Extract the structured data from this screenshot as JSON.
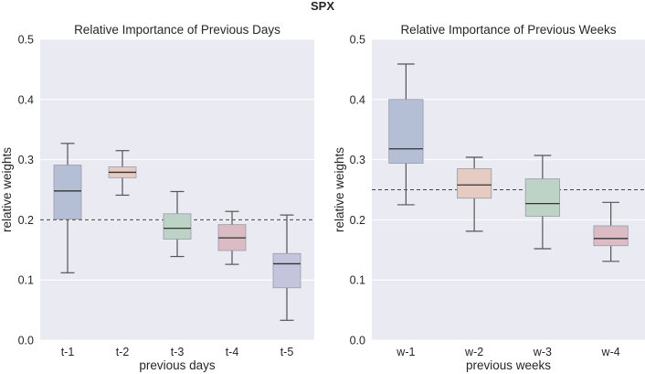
{
  "suptitle": "SPX",
  "chart_data": [
    {
      "type": "box",
      "title": "Relative Importance of Previous Days",
      "xlabel": "previous days",
      "ylabel": "relative weights",
      "ylim": [
        0.0,
        0.5
      ],
      "yticks": [
        "0.0",
        "0.1",
        "0.2",
        "0.3",
        "0.4",
        "0.5"
      ],
      "reference_line": 0.2,
      "grid": true,
      "categories": [
        "t-1",
        "t-2",
        "t-3",
        "t-4",
        "t-5"
      ],
      "boxes": [
        {
          "label": "t-1",
          "whisker_low": 0.112,
          "q1": 0.201,
          "median": 0.248,
          "q3": 0.291,
          "whisker_high": 0.327,
          "color": "#b4bfd6"
        },
        {
          "label": "t-2",
          "whisker_low": 0.241,
          "q1": 0.27,
          "median": 0.279,
          "q3": 0.288,
          "whisker_high": 0.315,
          "color": "#e6cbc3"
        },
        {
          "label": "t-3",
          "whisker_low": 0.139,
          "q1": 0.168,
          "median": 0.186,
          "q3": 0.21,
          "whisker_high": 0.247,
          "color": "#bcd3c6"
        },
        {
          "label": "t-4",
          "whisker_low": 0.126,
          "q1": 0.149,
          "median": 0.17,
          "q3": 0.192,
          "whisker_high": 0.214,
          "color": "#dbbcc4"
        },
        {
          "label": "t-5",
          "whisker_low": 0.033,
          "q1": 0.087,
          "median": 0.127,
          "q3": 0.144,
          "whisker_high": 0.208,
          "color": "#c5c4dd"
        }
      ]
    },
    {
      "type": "box",
      "title": "Relative Importance of Previous Weeks",
      "xlabel": "previous weeks",
      "ylabel": "relative weights",
      "ylim": [
        0.0,
        0.5
      ],
      "yticks": [
        "0.0",
        "0.1",
        "0.2",
        "0.3",
        "0.4",
        "0.5"
      ],
      "reference_line": 0.25,
      "grid": true,
      "categories": [
        "w-1",
        "w-2",
        "w-3",
        "w-4"
      ],
      "boxes": [
        {
          "label": "w-1",
          "whisker_low": 0.225,
          "q1": 0.294,
          "median": 0.318,
          "q3": 0.4,
          "whisker_high": 0.459,
          "color": "#b4bfd6"
        },
        {
          "label": "w-2",
          "whisker_low": 0.181,
          "q1": 0.236,
          "median": 0.258,
          "q3": 0.285,
          "whisker_high": 0.304,
          "color": "#e6cbc3"
        },
        {
          "label": "w-3",
          "whisker_low": 0.152,
          "q1": 0.206,
          "median": 0.227,
          "q3": 0.268,
          "whisker_high": 0.307,
          "color": "#bcd3c6"
        },
        {
          "label": "w-4",
          "whisker_low": 0.131,
          "q1": 0.157,
          "median": 0.169,
          "q3": 0.19,
          "whisker_high": 0.229,
          "color": "#dbbcc4"
        }
      ]
    }
  ]
}
